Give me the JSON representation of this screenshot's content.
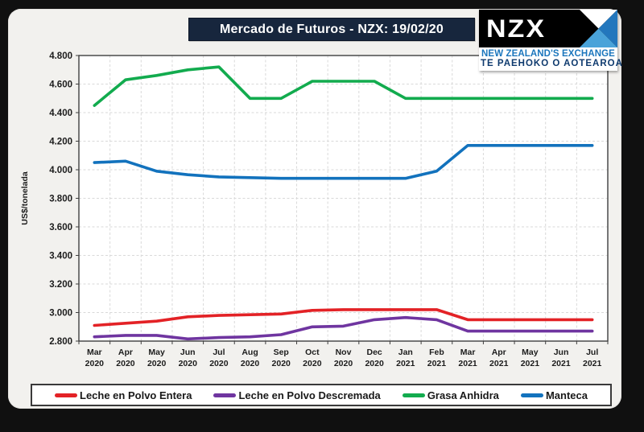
{
  "header": {
    "title": "Mercado de Futuros - NZX: 19/02/20",
    "logo": {
      "text": "NZX",
      "tagline1": "NEW ZEALAND'S EXCHANGE",
      "tagline2": "TE PAEHOKO O AOTEAROA",
      "arrow_colors": {
        "top": "#ffffff",
        "right": "#2377bd",
        "bottom": "#4aa3d9",
        "left": "#000000"
      }
    }
  },
  "chart_data": {
    "type": "line",
    "title": "Mercado de Futuros - NZX: 19/02/20",
    "xlabel": "",
    "ylabel": "US$/tonelada",
    "ylim": [
      2800,
      4800
    ],
    "ytick_step": 200,
    "ytick_labels": [
      "2.800",
      "3.000",
      "3.200",
      "3.400",
      "3.600",
      "3.800",
      "4.000",
      "4.200",
      "4.400",
      "4.600",
      "4.800"
    ],
    "grid": true,
    "gridline_style": "dashed",
    "legend_position": "bottom",
    "categories": [
      "Mar 2020",
      "Apr 2020",
      "May 2020",
      "Jun 2020",
      "Jul 2020",
      "Aug 2020",
      "Sep 2020",
      "Oct 2020",
      "Nov 2020",
      "Dec 2020",
      "Jan 2021",
      "Feb 2021",
      "Mar 2021",
      "Apr 2021",
      "May 2021",
      "Jun 2021",
      "Jul 2021"
    ],
    "series": [
      {
        "name": "Leche en Polvo Entera",
        "color": "#e32226",
        "values": [
          2910,
          2925,
          2940,
          2970,
          2980,
          2985,
          2990,
          3015,
          3020,
          3020,
          3020,
          3020,
          2950,
          2950,
          2950,
          2950,
          2950
        ]
      },
      {
        "name": "Leche en Polvo Descremada",
        "color": "#6f35a0",
        "values": [
          2830,
          2840,
          2840,
          2815,
          2825,
          2830,
          2845,
          2900,
          2905,
          2950,
          2965,
          2950,
          2870,
          2870,
          2870,
          2870,
          2870
        ]
      },
      {
        "name": "Grasa Anhidra",
        "color": "#12ab4e",
        "values": [
          4450,
          4630,
          4660,
          4700,
          4720,
          4500,
          4500,
          4620,
          4620,
          4620,
          4500,
          4500,
          4500,
          4500,
          4500,
          4500,
          4500
        ]
      },
      {
        "name": "Manteca",
        "color": "#1272bd",
        "values": [
          4050,
          4060,
          3990,
          3965,
          3950,
          3945,
          3940,
          3940,
          3940,
          3940,
          3940,
          3990,
          4170,
          4170,
          4170,
          4170,
          4170
        ]
      }
    ]
  }
}
